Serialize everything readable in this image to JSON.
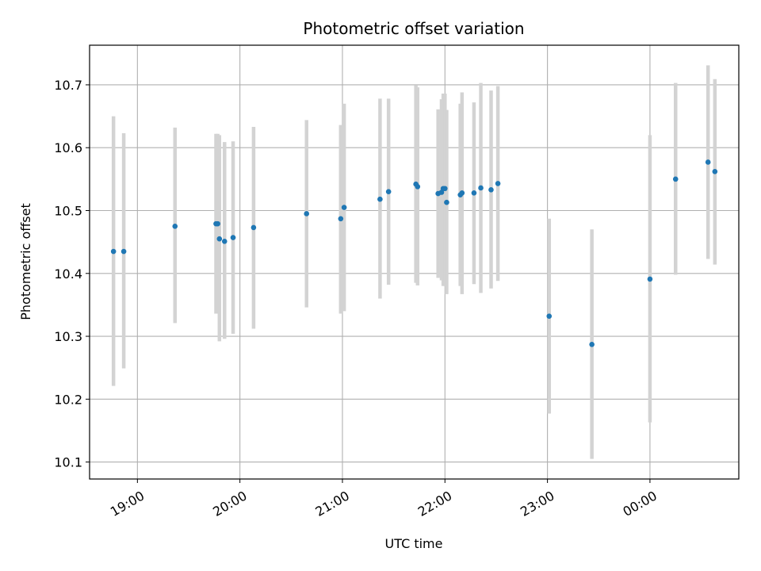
{
  "chart_data": {
    "type": "scatter",
    "title": "Photometric offset variation",
    "xlabel": "UTC time",
    "ylabel": "Photometric offset",
    "grid": true,
    "x_axis": {
      "kind": "time",
      "range": [
        "18:32",
        "24:52"
      ],
      "ticks": [
        {
          "t": "19:00",
          "label": "19:00"
        },
        {
          "t": "20:00",
          "label": "20:00"
        },
        {
          "t": "21:00",
          "label": "21:00"
        },
        {
          "t": "22:00",
          "label": "22:00"
        },
        {
          "t": "23:00",
          "label": "23:00"
        },
        {
          "t": "24:00",
          "label": "00:00"
        }
      ]
    },
    "y_axis": {
      "range": [
        10.073,
        10.763
      ],
      "ticks": [
        10.1,
        10.2,
        10.3,
        10.4,
        10.5,
        10.6,
        10.7
      ],
      "tick_labels": [
        "10.1",
        "10.2",
        "10.3",
        "10.4",
        "10.5",
        "10.6",
        "10.7"
      ]
    },
    "colors": {
      "point": "#1f77b4",
      "errorbar": "#d3d3d3",
      "grid": "#b0b0b0"
    },
    "series": [
      {
        "points": [
          {
            "t": "18:46",
            "y": 10.435,
            "lo": 10.221,
            "hi": 10.65
          },
          {
            "t": "18:52",
            "y": 10.435,
            "lo": 10.249,
            "hi": 10.623
          },
          {
            "t": "19:22",
            "y": 10.475,
            "lo": 10.321,
            "hi": 10.632
          },
          {
            "t": "19:46",
            "y": 10.479,
            "lo": 10.336,
            "hi": 10.622
          },
          {
            "t": "19:47",
            "y": 10.479,
            "lo": 10.336,
            "hi": 10.622
          },
          {
            "t": "19:48",
            "y": 10.455,
            "lo": 10.292,
            "hi": 10.62
          },
          {
            "t": "19:51",
            "y": 10.451,
            "lo": 10.296,
            "hi": 10.609
          },
          {
            "t": "19:56",
            "y": 10.457,
            "lo": 10.304,
            "hi": 10.61
          },
          {
            "t": "20:08",
            "y": 10.473,
            "lo": 10.312,
            "hi": 10.633
          },
          {
            "t": "20:39",
            "y": 10.495,
            "lo": 10.346,
            "hi": 10.644
          },
          {
            "t": "20:59",
            "y": 10.487,
            "lo": 10.336,
            "hi": 10.636
          },
          {
            "t": "21:01",
            "y": 10.505,
            "lo": 10.34,
            "hi": 10.67
          },
          {
            "t": "21:22",
            "y": 10.518,
            "lo": 10.36,
            "hi": 10.678
          },
          {
            "t": "21:27",
            "y": 10.53,
            "lo": 10.382,
            "hi": 10.678
          },
          {
            "t": "21:43",
            "y": 10.542,
            "lo": 10.385,
            "hi": 10.699
          },
          {
            "t": "21:44",
            "y": 10.538,
            "lo": 10.381,
            "hi": 10.696
          },
          {
            "t": "21:56",
            "y": 10.527,
            "lo": 10.393,
            "hi": 10.661
          },
          {
            "t": "21:58",
            "y": 10.529,
            "lo": 10.389,
            "hi": 10.677
          },
          {
            "t": "21:59",
            "y": 10.535,
            "lo": 10.38,
            "hi": 10.686
          },
          {
            "t": "22:00",
            "y": 10.535,
            "lo": 10.38,
            "hi": 10.686
          },
          {
            "t": "22:01",
            "y": 10.513,
            "lo": 10.367,
            "hi": 10.66
          },
          {
            "t": "22:09",
            "y": 10.525,
            "lo": 10.38,
            "hi": 10.67
          },
          {
            "t": "22:10",
            "y": 10.528,
            "lo": 10.367,
            "hi": 10.688
          },
          {
            "t": "22:17",
            "y": 10.528,
            "lo": 10.383,
            "hi": 10.672
          },
          {
            "t": "22:21",
            "y": 10.536,
            "lo": 10.369,
            "hi": 10.703
          },
          {
            "t": "22:27",
            "y": 10.533,
            "lo": 10.376,
            "hi": 10.691
          },
          {
            "t": "22:31",
            "y": 10.543,
            "lo": 10.388,
            "hi": 10.698
          },
          {
            "t": "23:01",
            "y": 10.332,
            "lo": 10.177,
            "hi": 10.487
          },
          {
            "t": "23:26",
            "y": 10.287,
            "lo": 10.105,
            "hi": 10.47
          },
          {
            "t": "24:00",
            "y": 10.391,
            "lo": 10.163,
            "hi": 10.62
          },
          {
            "t": "24:15",
            "y": 10.55,
            "lo": 10.398,
            "hi": 10.703
          },
          {
            "t": "24:34",
            "y": 10.577,
            "lo": 10.423,
            "hi": 10.731
          },
          {
            "t": "24:38",
            "y": 10.562,
            "lo": 10.414,
            "hi": 10.709
          }
        ]
      }
    ]
  }
}
